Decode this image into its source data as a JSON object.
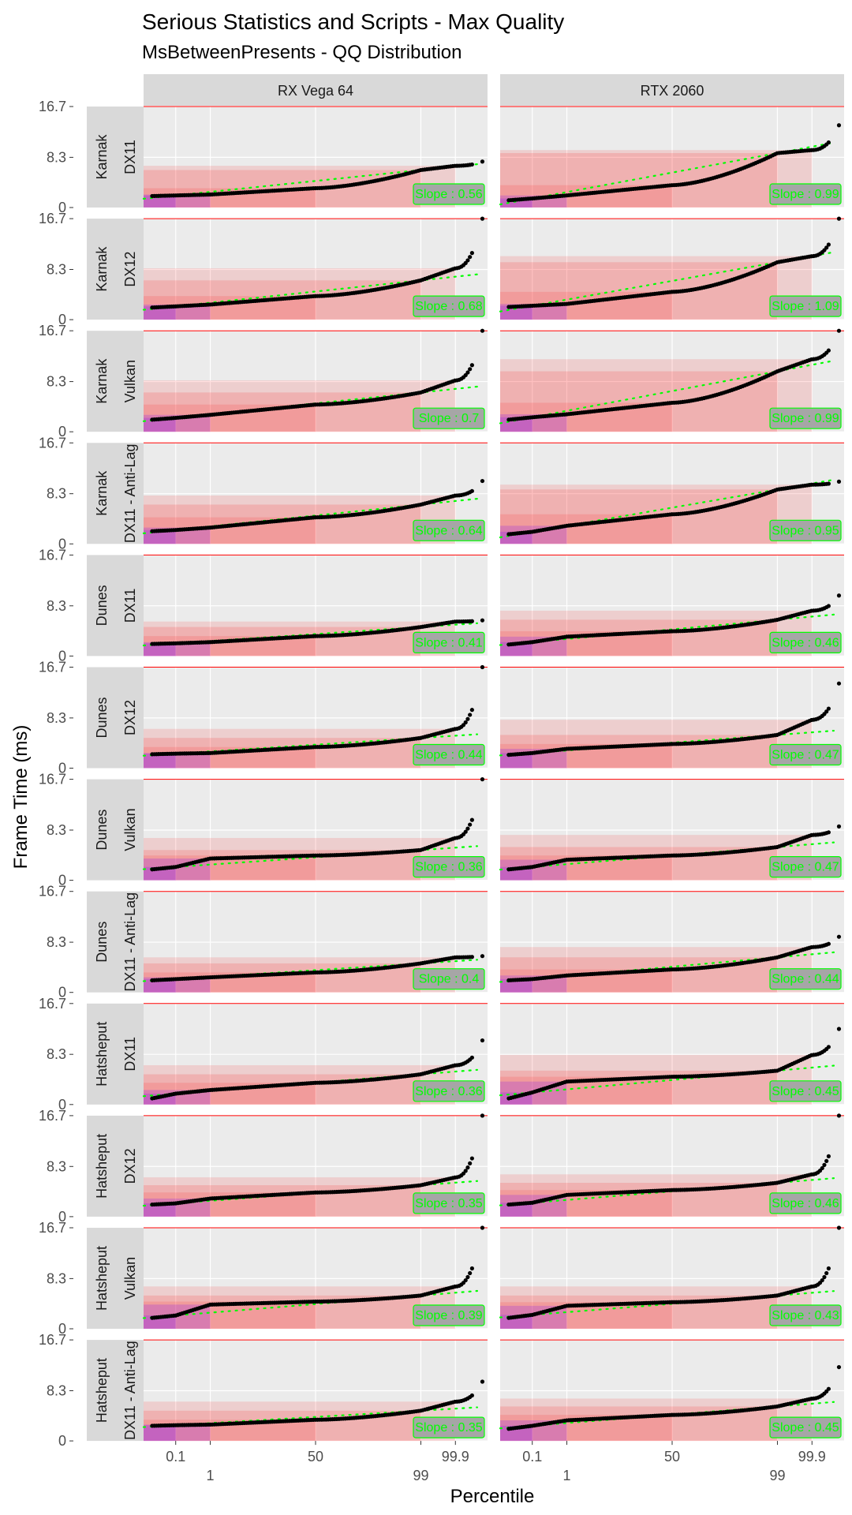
{
  "chart_data": {
    "type": "scatter",
    "title": "Serious Statistics and Scripts - Max Quality",
    "subtitle": "MsBetweenPresents - QQ Distribution",
    "xlabel": "Percentile",
    "ylabel": "Frame Time (ms)",
    "columns": [
      "RX Vega 64",
      "RTX 2060"
    ],
    "y_ticks": [
      "0",
      "8.3",
      "16.7"
    ],
    "ylim": [
      0,
      16.7
    ],
    "x_ticks": [
      {
        "label": "0.1",
        "percentile": 0.1,
        "row": 1
      },
      {
        "label": "1",
        "percentile": 1,
        "row": 2
      },
      {
        "label": "50",
        "percentile": 50,
        "row": 1
      },
      {
        "label": "99",
        "percentile": 99,
        "row": 2
      },
      {
        "label": "99.9",
        "percentile": 99.9,
        "row": 1
      }
    ],
    "reference_line": 16.7,
    "colors": {
      "points": "#000000",
      "slope_line": "#00ff00",
      "panel_bg": "#ebebeb",
      "strip_bg": "#d9d9d9",
      "ref_line": "#ff0000",
      "band_pink": "#ff0000",
      "band_purple": "#7a00ff"
    },
    "rows": [
      {
        "location": "Karnak",
        "api": "DX11",
        "panels": [
          {
            "slope_label": "Slope : 0.56",
            "p0": 1.9,
            "p01": 2.0,
            "p1": 2.15,
            "p50": 3.2,
            "p99": 6.2,
            "p999": 6.9,
            "max": 7.6
          },
          {
            "slope_label": "Slope : 0.99",
            "p0": 1.2,
            "p01": 1.5,
            "p1": 2.0,
            "p50": 3.7,
            "p99": 9.0,
            "p999": 9.5,
            "max": 13.6
          }
        ]
      },
      {
        "location": "Karnak",
        "api": "DX12",
        "panels": [
          {
            "slope_label": "Slope : 0.68",
            "p0": 2.0,
            "p01": 2.2,
            "p1": 2.5,
            "p50": 3.9,
            "p99": 6.5,
            "p999": 8.5,
            "max": 16.7
          },
          {
            "slope_label": "Slope : 1.09",
            "p0": 2.1,
            "p01": 2.3,
            "p1": 2.6,
            "p50": 4.6,
            "p99": 9.5,
            "p999": 10.5,
            "max": 16.7
          }
        ]
      },
      {
        "location": "Karnak",
        "api": "Vulkan",
        "panels": [
          {
            "slope_label": "Slope : 0.7",
            "p0": 2.0,
            "p01": 2.3,
            "p1": 2.8,
            "p50": 4.5,
            "p99": 6.5,
            "p999": 8.5,
            "max": 16.7
          },
          {
            "slope_label": "Slope : 0.99",
            "p0": 2.0,
            "p01": 2.4,
            "p1": 2.9,
            "p50": 4.8,
            "p99": 10.0,
            "p999": 12.0,
            "max": 16.7
          }
        ]
      },
      {
        "location": "Karnak",
        "api": "DX11 - Anti-Lag",
        "panels": [
          {
            "slope_label": "Slope : 0.64",
            "p0": 2.1,
            "p01": 2.3,
            "p1": 2.7,
            "p50": 4.4,
            "p99": 6.5,
            "p999": 8.0,
            "max": 10.4
          },
          {
            "slope_label": "Slope : 0.95",
            "p0": 1.6,
            "p01": 2.0,
            "p1": 3.0,
            "p50": 4.9,
            "p99": 9.0,
            "p999": 9.8,
            "max": 10.3
          }
        ]
      },
      {
        "location": "Dunes",
        "api": "DX11",
        "panels": [
          {
            "slope_label": "Slope : 0.41",
            "p0": 2.0,
            "p01": 2.1,
            "p1": 2.3,
            "p50": 3.3,
            "p99": 4.8,
            "p999": 5.7,
            "max": 5.9
          },
          {
            "slope_label": "Slope : 0.46",
            "p0": 1.9,
            "p01": 2.3,
            "p1": 3.2,
            "p50": 4.1,
            "p99": 6.0,
            "p999": 7.5,
            "max": 10.0
          }
        ]
      },
      {
        "location": "Dunes",
        "api": "DX12",
        "panels": [
          {
            "slope_label": "Slope : 0.44",
            "p0": 2.3,
            "p01": 2.4,
            "p1": 2.5,
            "p50": 3.5,
            "p99": 5.0,
            "p999": 6.5,
            "max": 16.7
          },
          {
            "slope_label": "Slope : 0.47",
            "p0": 2.2,
            "p01": 2.5,
            "p1": 3.2,
            "p50": 4.0,
            "p99": 5.5,
            "p999": 8.0,
            "max": 14.0
          }
        ]
      },
      {
        "location": "Dunes",
        "api": "Vulkan",
        "panels": [
          {
            "slope_label": "Slope : 0.36",
            "p0": 1.8,
            "p01": 2.2,
            "p1": 3.6,
            "p50": 4.1,
            "p99": 5.0,
            "p999": 7.0,
            "max": 16.7
          },
          {
            "slope_label": "Slope : 0.47",
            "p0": 1.8,
            "p01": 2.2,
            "p1": 3.4,
            "p50": 4.1,
            "p99": 5.5,
            "p999": 7.5,
            "max": 8.9
          }
        ]
      },
      {
        "location": "Dunes",
        "api": "DX11 - Anti-Lag",
        "panels": [
          {
            "slope_label": "Slope : 0.4",
            "p0": 2.0,
            "p01": 2.2,
            "p1": 2.5,
            "p50": 3.3,
            "p99": 4.8,
            "p999": 5.8,
            "max": 6.0
          },
          {
            "slope_label": "Slope : 0.44",
            "p0": 2.0,
            "p01": 2.2,
            "p1": 2.8,
            "p50": 3.8,
            "p99": 5.8,
            "p999": 7.5,
            "max": 9.2
          }
        ]
      },
      {
        "location": "Hatsheput",
        "api": "DX11",
        "panels": [
          {
            "slope_label": "Slope : 0.36",
            "p0": 1.0,
            "p01": 1.8,
            "p1": 2.4,
            "p50": 3.6,
            "p99": 5.0,
            "p999": 6.5,
            "max": 10.6
          },
          {
            "slope_label": "Slope : 0.45",
            "p0": 1.0,
            "p01": 2.0,
            "p1": 3.8,
            "p50": 4.6,
            "p99": 5.6,
            "p999": 8.2,
            "max": 12.5
          }
        ]
      },
      {
        "location": "Hatsheput",
        "api": "DX12",
        "panels": [
          {
            "slope_label": "Slope : 0.35",
            "p0": 2.0,
            "p01": 2.2,
            "p1": 3.0,
            "p50": 4.0,
            "p99": 5.2,
            "p999": 6.5,
            "max": 16.7
          },
          {
            "slope_label": "Slope : 0.46",
            "p0": 2.0,
            "p01": 2.3,
            "p1": 3.6,
            "p50": 4.4,
            "p99": 5.6,
            "p999": 7.0,
            "max": 16.7
          }
        ]
      },
      {
        "location": "Hatsheput",
        "api": "Vulkan",
        "panels": [
          {
            "slope_label": "Slope : 0.39",
            "p0": 1.8,
            "p01": 2.2,
            "p1": 4.0,
            "p50": 4.5,
            "p99": 5.5,
            "p999": 7.0,
            "max": 16.7
          },
          {
            "slope_label": "Slope : 0.43",
            "p0": 1.8,
            "p01": 2.3,
            "p1": 3.8,
            "p50": 4.4,
            "p99": 5.5,
            "p999": 7.0,
            "max": 16.7
          }
        ]
      },
      {
        "location": "Hatsheput",
        "api": "DX11 - Anti-Lag",
        "panels": [
          {
            "slope_label": "Slope : 0.35",
            "p0": 2.5,
            "p01": 2.6,
            "p1": 2.7,
            "p50": 3.5,
            "p99": 5.0,
            "p999": 6.5,
            "max": 9.8
          },
          {
            "slope_label": "Slope : 0.45",
            "p0": 2.0,
            "p01": 2.5,
            "p1": 3.4,
            "p50": 4.3,
            "p99": 5.7,
            "p999": 7.0,
            "max": 12.2
          }
        ]
      }
    ]
  }
}
